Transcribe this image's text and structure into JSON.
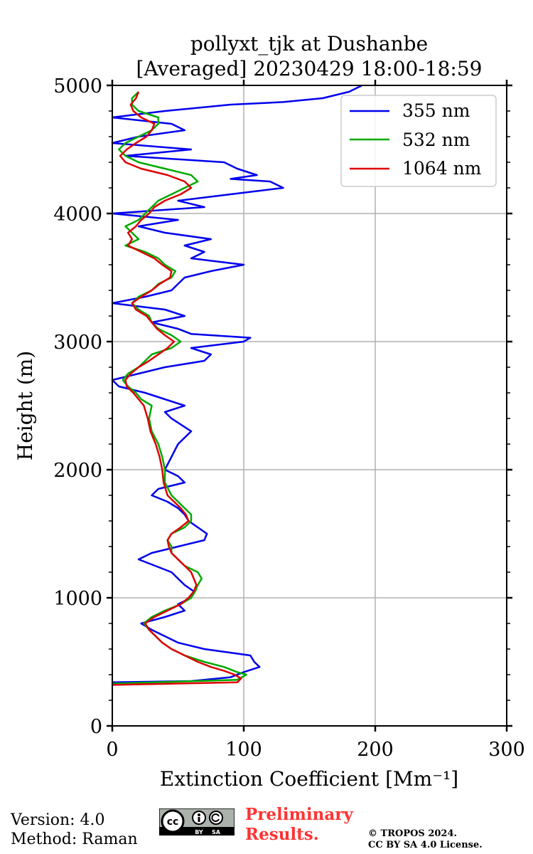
{
  "chart_data": {
    "type": "line",
    "title": "pollyxt_tjk at Dushanbe",
    "subtitle": "[Averaged] 20230429 18:00-18:59",
    "xlabel": "Extinction Coefficient [Mm⁻¹]",
    "ylabel": "Height (m)",
    "xlim": [
      0,
      300
    ],
    "ylim": [
      0,
      5000
    ],
    "xticks": [
      0,
      100,
      200,
      300
    ],
    "yticks": [
      0,
      1000,
      2000,
      3000,
      4000,
      5000
    ],
    "xtick_labels": [
      "0",
      "100",
      "200",
      "300"
    ],
    "ytick_labels": [
      "0",
      "1000",
      "2000",
      "3000",
      "4000",
      "5000"
    ],
    "grid": true,
    "legend_position": "top-right",
    "series": [
      {
        "name": "355 nm",
        "color": "#0000ee",
        "height": [
          340,
          350,
          380,
          420,
          460,
          500,
          550,
          600,
          650,
          700,
          750,
          800,
          850,
          900,
          950,
          1000,
          1050,
          1100,
          1150,
          1200,
          1300,
          1350,
          1400,
          1450,
          1500,
          1550,
          1600,
          1650,
          1700,
          1750,
          1800,
          1850,
          1900,
          1950,
          2000,
          2100,
          2200,
          2300,
          2400,
          2450,
          2500,
          2550,
          2600,
          2650,
          2700,
          2750,
          2800,
          2850,
          2900,
          2950,
          3000,
          3030,
          3060,
          3100,
          3150,
          3200,
          3250,
          3300,
          3350,
          3400,
          3450,
          3500,
          3550,
          3600,
          3650,
          3700,
          3750,
          3800,
          3850,
          3900,
          3950,
          4000,
          4050,
          4100,
          4150,
          4200,
          4250,
          4270,
          4300,
          4350,
          4400,
          4450,
          4480,
          4500,
          4550,
          4600,
          4650,
          4700,
          4750,
          4800,
          4850,
          4870,
          4900,
          4950,
          5000
        ],
        "values": [
          0,
          60,
          90,
          100,
          112,
          108,
          105,
          70,
          50,
          40,
          30,
          22,
          40,
          55,
          50,
          60,
          62,
          55,
          50,
          45,
          20,
          30,
          50,
          70,
          72,
          65,
          58,
          55,
          50,
          42,
          30,
          35,
          55,
          50,
          40,
          45,
          50,
          60,
          45,
          40,
          55,
          40,
          25,
          5,
          0,
          20,
          40,
          70,
          75,
          60,
          100,
          105,
          60,
          50,
          30,
          55,
          40,
          0,
          25,
          45,
          50,
          55,
          75,
          100,
          60,
          70,
          55,
          75,
          40,
          20,
          50,
          0,
          70,
          50,
          90,
          130,
          120,
          90,
          110,
          95,
          85,
          10,
          40,
          60,
          0,
          20,
          55,
          45,
          0,
          40,
          90,
          130,
          160,
          180,
          190
        ]
      },
      {
        "name": "532 nm",
        "color": "#00aa00",
        "height": [
          330,
          360,
          400,
          420,
          460,
          500,
          550,
          600,
          650,
          700,
          750,
          800,
          850,
          900,
          950,
          1000,
          1050,
          1100,
          1150,
          1200,
          1250,
          1300,
          1350,
          1400,
          1450,
          1500,
          1550,
          1600,
          1650,
          1700,
          1750,
          1800,
          1900,
          2000,
          2100,
          2200,
          2300,
          2400,
          2500,
          2550,
          2600,
          2650,
          2700,
          2750,
          2800,
          2850,
          2900,
          2950,
          3000,
          3050,
          3100,
          3150,
          3200,
          3250,
          3300,
          3350,
          3400,
          3450,
          3500,
          3550,
          3600,
          3650,
          3700,
          3750,
          3800,
          3850,
          3900,
          3950,
          4000,
          4050,
          4100,
          4150,
          4200,
          4250,
          4300,
          4350,
          4400,
          4450,
          4500,
          4550,
          4600,
          4650,
          4700,
          4750,
          4800,
          4850,
          4900,
          4950
        ],
        "values": [
          0,
          95,
          102,
          95,
          85,
          70,
          55,
          45,
          38,
          33,
          28,
          24,
          30,
          40,
          52,
          60,
          63,
          65,
          68,
          65,
          55,
          50,
          45,
          45,
          42,
          45,
          55,
          60,
          60,
          55,
          50,
          45,
          40,
          40,
          38,
          35,
          30,
          28,
          30,
          22,
          18,
          12,
          8,
          12,
          20,
          25,
          30,
          45,
          52,
          45,
          35,
          30,
          28,
          20,
          15,
          20,
          30,
          35,
          45,
          48,
          40,
          35,
          25,
          10,
          20,
          15,
          10,
          20,
          25,
          30,
          35,
          45,
          55,
          65,
          60,
          40,
          20,
          10,
          5,
          10,
          20,
          30,
          35,
          35,
          20,
          15,
          15,
          20
        ]
      },
      {
        "name": "1064 nm",
        "color": "#dd0000",
        "height": [
          320,
          340,
          370,
          400,
          430,
          460,
          500,
          550,
          600,
          650,
          700,
          750,
          800,
          850,
          900,
          950,
          1000,
          1050,
          1100,
          1150,
          1200,
          1250,
          1300,
          1350,
          1400,
          1450,
          1500,
          1550,
          1600,
          1650,
          1700,
          1750,
          1800,
          1900,
          2000,
          2100,
          2200,
          2300,
          2400,
          2500,
          2550,
          2600,
          2650,
          2700,
          2750,
          2800,
          2850,
          2900,
          2950,
          3000,
          3050,
          3100,
          3150,
          3200,
          3250,
          3300,
          3350,
          3400,
          3450,
          3500,
          3550,
          3600,
          3650,
          3700,
          3750,
          3800,
          3850,
          3900,
          3950,
          4000,
          4050,
          4100,
          4150,
          4200,
          4250,
          4300,
          4350,
          4400,
          4450,
          4500,
          4550,
          4600,
          4650,
          4700,
          4750,
          4800,
          4850,
          4900,
          4950
        ],
        "values": [
          0,
          95,
          98,
          93,
          85,
          75,
          65,
          55,
          45,
          38,
          33,
          28,
          25,
          32,
          42,
          52,
          58,
          62,
          64,
          62,
          60,
          55,
          50,
          45,
          43,
          42,
          45,
          52,
          58,
          56,
          52,
          47,
          42,
          39,
          38,
          36,
          33,
          29,
          27,
          24,
          20,
          16,
          11,
          10,
          14,
          20,
          28,
          35,
          42,
          47,
          40,
          34,
          30,
          26,
          18,
          15,
          22,
          30,
          36,
          44,
          45,
          38,
          32,
          22,
          12,
          15,
          12,
          18,
          22,
          28,
          32,
          40,
          52,
          60,
          55,
          42,
          22,
          10,
          6,
          11,
          18,
          26,
          30,
          32,
          22,
          16,
          14,
          18,
          20
        ]
      }
    ]
  },
  "footer": {
    "version": "Version: 4.0",
    "method": "Method: Raman",
    "preliminary_line1": "Preliminary",
    "preliminary_line2": "Results.",
    "copyright_line1": "© TROPOS 2024.",
    "copyright_line2": "CC BY SA 4.0 License.",
    "license_logo_text": [
      "cc",
      "BY",
      "SA"
    ]
  }
}
